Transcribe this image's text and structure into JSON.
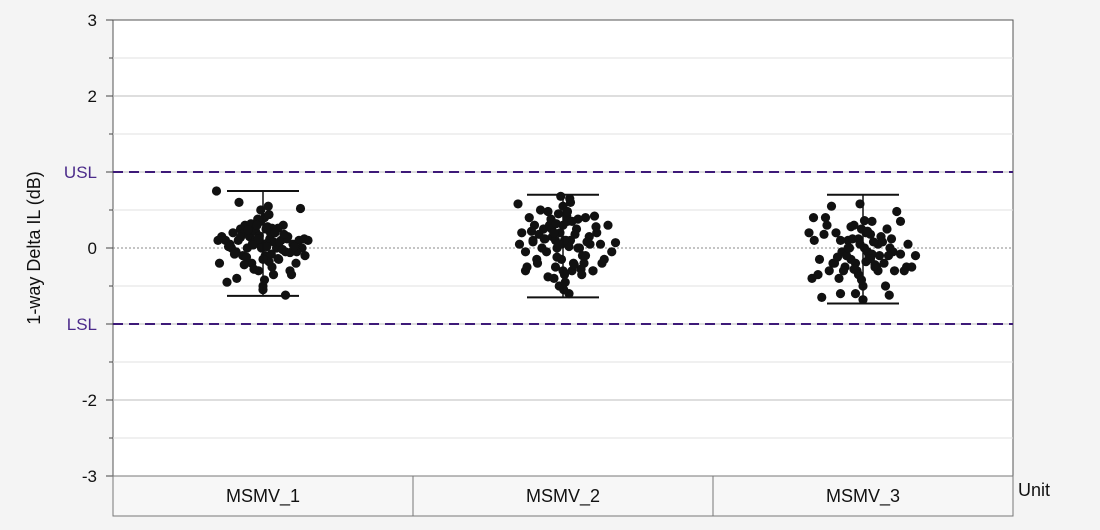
{
  "chart_data": {
    "type": "scatter",
    "title": "",
    "xlabel": "Unit",
    "ylabel": "1-way Delta IL (dB)",
    "ylim": [
      -3,
      3
    ],
    "yticks": [
      3,
      2,
      0,
      -2,
      -3
    ],
    "grid": true,
    "categories": [
      "MSMV_1",
      "MSMV_2",
      "MSMV_3"
    ],
    "spec_limits": [
      {
        "name": "USL",
        "value": 1.0
      },
      {
        "name": "LSL",
        "value": -1.0
      }
    ],
    "colors": {
      "points": "#111111",
      "spec_line": "#3d1a78",
      "spec_label": "#4b2a8a"
    },
    "ranges": [
      {
        "category": "MSMV_1",
        "min": -0.63,
        "max": 0.75
      },
      {
        "category": "MSMV_2",
        "min": -0.65,
        "max": 0.7
      },
      {
        "category": "MSMV_3",
        "min": -0.73,
        "max": 0.7
      }
    ],
    "series": [
      {
        "category": "MSMV_1",
        "x": [
          -0.62,
          -0.55,
          -0.48,
          -0.44,
          -0.4,
          -0.36,
          -0.33,
          -0.3,
          -0.27,
          -0.24,
          -0.21,
          -0.18,
          -0.15,
          -0.12,
          -0.09,
          -0.06,
          -0.03,
          0,
          0.03,
          0.06,
          0.09,
          0.12,
          0.15,
          0.18,
          0.21,
          0.24,
          0.27,
          0.3,
          0.33,
          0.36,
          0.4,
          0.44,
          0.48,
          0.52,
          0.56,
          0.6,
          -0.58,
          -0.5,
          -0.42,
          -0.35,
          -0.28,
          -0.22,
          -0.16,
          -0.1,
          -0.04,
          0.02,
          0.08,
          0.14,
          0.2,
          0.26,
          0.32,
          0.38,
          0.45,
          0.5,
          -0.46,
          -0.38,
          -0.3,
          -0.2,
          -0.12,
          -0.05,
          0.05,
          0.12,
          0.2,
          0.28,
          0.36,
          0.42,
          -0.25,
          -0.14,
          -0.07,
          0,
          0.07,
          0.14,
          0.22,
          -0.1,
          0,
          0.1,
          -0.02,
          0.04,
          -0.06,
          0.02,
          0.08,
          -0.08,
          0,
          0.05,
          -0.03,
          0.11,
          -0.13,
          0.16,
          0.3,
          -0.32,
          0.55,
          -0.6
        ],
        "y": [
          0.75,
          0.15,
          -0.45,
          0.05,
          0.2,
          -0.05,
          0.1,
          0.25,
          -0.1,
          0.3,
          0.0,
          0.15,
          -0.2,
          0.22,
          0.1,
          -0.3,
          0.35,
          0.05,
          -0.1,
          0.28,
          0.12,
          -0.25,
          0.2,
          0.0,
          -0.15,
          0.1,
          0.3,
          -0.05,
          0.15,
          -0.3,
          0.05,
          -0.2,
          0.1,
          0.0,
          -0.1,
          0.1,
          -0.2,
          0.1,
          0.0,
          -0.4,
          0.18,
          -0.12,
          0.32,
          0.22,
          0.05,
          0.4,
          -0.18,
          0.08,
          0.26,
          -0.02,
          0.12,
          -0.35,
          -0.05,
          0.52,
          0.02,
          -0.08,
          0.14,
          0.24,
          -0.28,
          0.16,
          0.06,
          0.26,
          -0.14,
          0.18,
          -0.06,
          0.02,
          -0.22,
          0.06,
          0.38,
          -0.5,
          0.55,
          -0.35,
          0.08,
          0.1,
          -0.55,
          0.2,
          0.0,
          0.25,
          0.12,
          -0.42,
          0.44,
          0.3,
          -0.15,
          0.02,
          0.5,
          -0.08,
          0.04,
          0.2,
          -0.62,
          0.6,
          0.12,
          0.1
        ]
      },
      {
        "category": "MSMV_2",
        "x": [
          -0.6,
          -0.55,
          -0.5,
          -0.45,
          -0.4,
          -0.35,
          -0.3,
          -0.26,
          -0.22,
          -0.18,
          -0.14,
          -0.1,
          -0.06,
          -0.02,
          0.02,
          0.06,
          0.1,
          0.14,
          0.18,
          0.22,
          0.26,
          0.3,
          0.35,
          0.4,
          0.45,
          0.5,
          0.55,
          0.6,
          0.65,
          -0.58,
          -0.48,
          -0.38,
          -0.28,
          -0.2,
          -0.12,
          -0.04,
          0.04,
          0.12,
          0.2,
          0.28,
          0.36,
          0.44,
          0.52,
          -0.5,
          -0.42,
          -0.34,
          -0.24,
          -0.16,
          -0.08,
          0,
          0.08,
          0.16,
          0.24,
          0.32,
          0.42,
          -0.32,
          -0.2,
          -0.1,
          0,
          0.1,
          0.2,
          0.3,
          -0.15,
          -0.05,
          0.05,
          0.15,
          -0.03,
          0.03,
          0,
          -0.08,
          0.08,
          -0.12,
          0.12,
          0.02,
          -0.02,
          0.06,
          -0.06,
          0.01,
          0.09,
          -0.09,
          0.25,
          -0.25,
          0.4,
          -0.4,
          0.7
        ],
        "y": [
          0.58,
          0.2,
          -0.3,
          0.4,
          0.1,
          -0.15,
          0.5,
          0.25,
          -0.05,
          0.3,
          0.15,
          -0.25,
          0.45,
          0.05,
          -0.35,
          0.35,
          0.1,
          -0.2,
          0.25,
          0.0,
          -0.1,
          0.4,
          0.15,
          -0.3,
          0.2,
          0.05,
          -0.15,
          0.3,
          -0.05,
          0.05,
          -0.25,
          0.3,
          0.0,
          0.48,
          -0.4,
          0.2,
          0.1,
          -0.3,
          0.38,
          -0.2,
          0.05,
          0.28,
          -0.2,
          -0.05,
          0.22,
          -0.2,
          0.12,
          0.38,
          -0.12,
          0.3,
          0.02,
          0.18,
          -0.28,
          0.08,
          0.42,
          0.18,
          -0.38,
          0.1,
          -0.3,
          0.6,
          0.0,
          -0.1,
          0.25,
          -0.5,
          0.42,
          -0.22,
          0.68,
          -0.45,
          0.55,
          0.0,
          -0.6,
          0.2,
          0.35,
          0.1,
          -0.15,
          0.48,
          0.05,
          -0.55,
          0.65,
          0.32,
          -0.35,
          0.12,
          -0.3,
          0.08,
          0.07
        ]
      },
      {
        "category": "MSMV_3",
        "x": [
          -0.72,
          -0.68,
          -0.65,
          -0.6,
          -0.55,
          -0.5,
          -0.45,
          -0.4,
          -0.36,
          -0.32,
          -0.28,
          -0.24,
          -0.2,
          -0.16,
          -0.12,
          -0.08,
          -0.04,
          0,
          0.04,
          0.08,
          0.12,
          0.16,
          0.2,
          0.24,
          0.28,
          0.32,
          0.36,
          0.4,
          0.45,
          0.5,
          0.55,
          0.6,
          0.65,
          0.7,
          -0.58,
          -0.48,
          -0.38,
          -0.3,
          -0.22,
          -0.14,
          -0.06,
          0.02,
          0.1,
          0.18,
          0.26,
          0.34,
          0.42,
          0.5,
          -0.42,
          -0.34,
          -0.26,
          -0.18,
          -0.1,
          -0.02,
          0.06,
          0.14,
          0.22,
          0.3,
          0.38,
          -0.2,
          -0.12,
          -0.04,
          0.04,
          0.12,
          0.2,
          -0.06,
          0,
          0.06,
          -0.1,
          0.1,
          0.02,
          -0.02,
          -0.16,
          0.16,
          -0.52,
          0.58,
          0.35,
          -0.3,
          -0.66
        ],
        "y": [
          0.2,
          -0.4,
          0.1,
          -0.35,
          -0.65,
          0.4,
          -0.3,
          -0.2,
          0.2,
          -0.4,
          -0.05,
          -0.25,
          0.1,
          -0.15,
          0.3,
          -0.3,
          0.05,
          -0.5,
          0.2,
          -0.1,
          0.35,
          -0.25,
          0.05,
          0.15,
          -0.2,
          0.25,
          0.0,
          -0.05,
          0.48,
          0.35,
          -0.3,
          0.05,
          -0.25,
          -0.1,
          -0.15,
          0.3,
          -0.2,
          -0.6,
          -0.1,
          0.12,
          -0.35,
          0.0,
          0.18,
          -0.25,
          0.08,
          -0.1,
          -0.3,
          -0.08,
          0.55,
          -0.12,
          -0.3,
          0.0,
          -0.2,
          0.25,
          -0.05,
          0.08,
          -0.1,
          -0.5,
          0.12,
          0.0,
          -0.28,
          0.58,
          -0.18,
          -0.08,
          -0.3,
          0.12,
          -0.68,
          0.22,
          -0.6,
          -0.14,
          0.36,
          -0.42,
          0.28,
          -0.22,
          0.18,
          -0.25,
          -0.62,
          0.1,
          0.4
        ]
      }
    ]
  }
}
